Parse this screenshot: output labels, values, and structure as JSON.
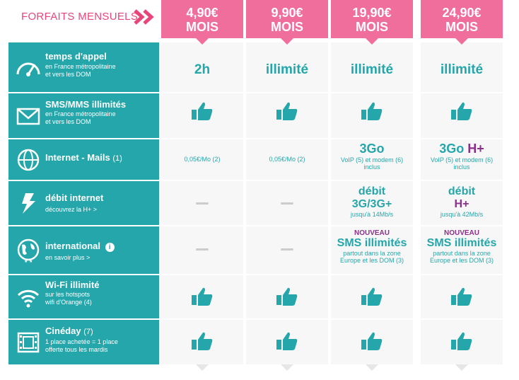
{
  "header": {
    "label": "FORFAITS MENSUELS",
    "plans": [
      {
        "price": "4,90€",
        "period": "MOIS"
      },
      {
        "price": "9,90€",
        "period": "MOIS"
      },
      {
        "price": "19,90€",
        "period": "MOIS"
      },
      {
        "price": "24,90€",
        "period": "MOIS"
      }
    ]
  },
  "rows": [
    {
      "title": "temps d'appel",
      "sub1": "en France métropolitaine",
      "sub2": "et vers les DOM",
      "icon": "gauge-icon",
      "cells": [
        "2h",
        "illimité",
        "illimité",
        "illimité"
      ]
    },
    {
      "title": "SMS/MMS illimités",
      "sub1": "en France métropolitaine",
      "sub2": "et vers les DOM",
      "icon": "envelope-icon"
    },
    {
      "title": "Internet - Mails",
      "note": "(1)",
      "icon": "globe-icon",
      "cells": [
        "0,05€/Mo (2)",
        "0,05€/Mo (2)"
      ],
      "c3_main": "3Go",
      "c4_main": "3Go",
      "c4_extra": "H+",
      "c_detail1": "VoIP (5) et modem (6)",
      "c_detail2": "inclus"
    },
    {
      "title": "débit internet",
      "sub1": "découvrez la H+ >",
      "icon": "lightning-icon",
      "c3_l1": "débit",
      "c3_l2": "3G/3G+",
      "c3_l3": "jusqu'à 14Mb/s",
      "c4_l1": "débit",
      "c4_l2": "H+",
      "c4_l3": "jusqu'à 42Mb/s"
    },
    {
      "title": "international",
      "sub1": "en savoir plus >",
      "icon": "earth-icon",
      "nouveau": "NOUVEAU",
      "sms": "SMS illimités",
      "d1": "partout dans la zone",
      "d2": "Europe et les DOM (3)"
    },
    {
      "title": "Wi-Fi illimité",
      "sub1": "sur les hotspots",
      "sub2": "wifi d'Orange (4)",
      "icon": "wifi-icon"
    },
    {
      "title": "Cinéday",
      "note": "(7)",
      "sub1": "1 place achetée = 1 place",
      "sub2": "offerte tous les mardis",
      "icon": "film-icon"
    }
  ],
  "colors": {
    "teal": "#24a6aa",
    "pink": "#f06e9c",
    "purple": "#8b2f8b"
  }
}
